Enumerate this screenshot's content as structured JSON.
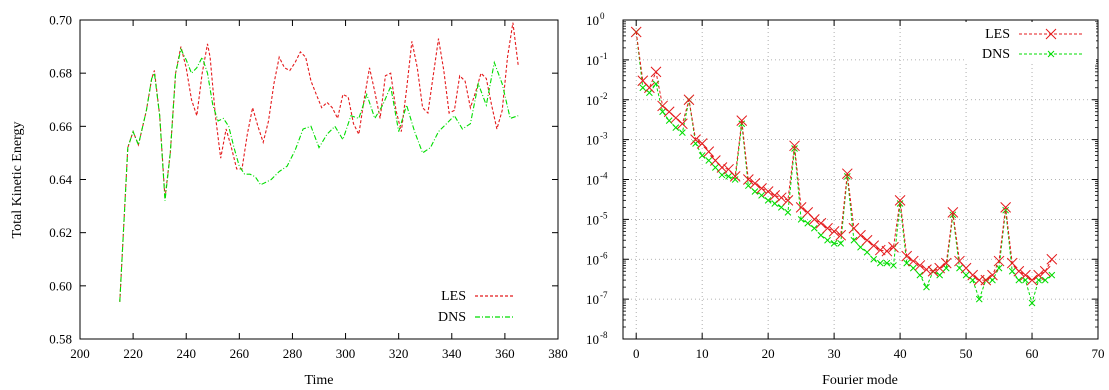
{
  "colors": {
    "les": "#e41a1c",
    "dns": "#00dd00",
    "grid": "#9a9a9a",
    "axis": "#000000"
  },
  "chart_data": [
    {
      "type": "line",
      "xlabel": "Time",
      "ylabel": "Total Kinetic Energy",
      "xlim": [
        200,
        380
      ],
      "ylim": [
        0.58,
        0.7
      ],
      "xticks": [
        200,
        220,
        240,
        260,
        280,
        300,
        320,
        340,
        360,
        380
      ],
      "xtick_labels": [
        "200",
        "220",
        "240",
        "260",
        "280",
        "300",
        "320",
        "340",
        "360",
        "380"
      ],
      "yticks": [
        0.58,
        0.6,
        0.62,
        0.64,
        0.66,
        0.68,
        0.7
      ],
      "ytick_labels": [
        "0.58",
        "0.60",
        "0.62",
        "0.64",
        "0.66",
        "0.68",
        "0.70"
      ],
      "grid": false,
      "legend_position": "bottom-right",
      "series": [
        {
          "name": "LES",
          "style": "dashed",
          "x": [
            215,
            218,
            220,
            222,
            225,
            227,
            228,
            230,
            232,
            234,
            236,
            238,
            240,
            242,
            244,
            246,
            248,
            249,
            251,
            253,
            255,
            257,
            259,
            261,
            263,
            265,
            267,
            269,
            271,
            273,
            275,
            277,
            279,
            281,
            283,
            285,
            287,
            289,
            291,
            293,
            295,
            297,
            299,
            301,
            303,
            305,
            307,
            309,
            311,
            313,
            315,
            317,
            319,
            321,
            323,
            325,
            327,
            329,
            331,
            333,
            335,
            337,
            339,
            341,
            343,
            345,
            347,
            349,
            351,
            353,
            355,
            357,
            359,
            361,
            363,
            365
          ],
          "y": [
            0.594,
            0.652,
            0.658,
            0.653,
            0.666,
            0.678,
            0.681,
            0.664,
            0.633,
            0.65,
            0.68,
            0.69,
            0.682,
            0.67,
            0.664,
            0.68,
            0.691,
            0.686,
            0.664,
            0.648,
            0.659,
            0.652,
            0.644,
            0.644,
            0.657,
            0.667,
            0.66,
            0.654,
            0.662,
            0.676,
            0.686,
            0.682,
            0.681,
            0.684,
            0.688,
            0.686,
            0.677,
            0.672,
            0.667,
            0.669,
            0.667,
            0.663,
            0.672,
            0.671,
            0.661,
            0.657,
            0.67,
            0.682,
            0.673,
            0.663,
            0.679,
            0.68,
            0.666,
            0.658,
            0.674,
            0.692,
            0.682,
            0.667,
            0.665,
            0.679,
            0.693,
            0.681,
            0.665,
            0.666,
            0.679,
            0.677,
            0.667,
            0.673,
            0.68,
            0.678,
            0.668,
            0.659,
            0.666,
            0.686,
            0.699,
            0.683
          ]
        },
        {
          "name": "DNS",
          "style": "dash-dot",
          "x": [
            215,
            218,
            220,
            222,
            225,
            227,
            228,
            230,
            232,
            234,
            236,
            238,
            240,
            242,
            244,
            246,
            248,
            250,
            252,
            254,
            256,
            258,
            260,
            262,
            264,
            266,
            268,
            270,
            272,
            275,
            278,
            281,
            284,
            287,
            290,
            293,
            296,
            299,
            302,
            305,
            308,
            311,
            314,
            317,
            320,
            323,
            326,
            329,
            332,
            335,
            338,
            341,
            344,
            347,
            350,
            353,
            356,
            359,
            362,
            365
          ],
          "y": [
            0.594,
            0.652,
            0.658,
            0.653,
            0.666,
            0.678,
            0.68,
            0.664,
            0.632,
            0.65,
            0.68,
            0.689,
            0.685,
            0.68,
            0.682,
            0.686,
            0.68,
            0.668,
            0.662,
            0.663,
            0.66,
            0.652,
            0.645,
            0.642,
            0.642,
            0.641,
            0.638,
            0.639,
            0.64,
            0.643,
            0.645,
            0.651,
            0.659,
            0.66,
            0.652,
            0.657,
            0.66,
            0.655,
            0.664,
            0.663,
            0.672,
            0.663,
            0.668,
            0.675,
            0.658,
            0.668,
            0.658,
            0.65,
            0.652,
            0.658,
            0.661,
            0.664,
            0.659,
            0.661,
            0.676,
            0.668,
            0.684,
            0.676,
            0.663,
            0.664
          ]
        }
      ]
    },
    {
      "type": "line",
      "xlabel": "Fourier mode",
      "ylabel": "",
      "yscale": "log",
      "xlim": [
        -2,
        70
      ],
      "ylim": [
        1e-08,
        1
      ],
      "xticks": [
        0,
        10,
        20,
        30,
        40,
        50,
        60,
        70
      ],
      "xtick_labels": [
        "0",
        "10",
        "20",
        "30",
        "40",
        "50",
        "60",
        "70"
      ],
      "yticks": [
        1e-08,
        1e-07,
        1e-06,
        1e-05,
        0.0001,
        0.001,
        0.01,
        0.1,
        1
      ],
      "ytick_labels": [
        {
          "base": "10",
          "exp": "-8"
        },
        {
          "base": "10",
          "exp": "-7"
        },
        {
          "base": "10",
          "exp": "-6"
        },
        {
          "base": "10",
          "exp": "-5"
        },
        {
          "base": "10",
          "exp": "-4"
        },
        {
          "base": "10",
          "exp": "-3"
        },
        {
          "base": "10",
          "exp": "-2"
        },
        {
          "base": "10",
          "exp": "-1"
        },
        {
          "base": "10",
          "exp": "0"
        }
      ],
      "grid": true,
      "legend_position": "top-right",
      "series": [
        {
          "name": "LES",
          "marker": "x",
          "style": "dashed",
          "x": [
            0,
            1,
            2,
            3,
            4,
            5,
            6,
            7,
            8,
            9,
            10,
            11,
            12,
            13,
            14,
            15,
            16,
            17,
            18,
            19,
            20,
            21,
            22,
            23,
            24,
            25,
            26,
            27,
            28,
            29,
            30,
            31,
            32,
            33,
            34,
            35,
            36,
            37,
            38,
            39,
            40,
            41,
            42,
            43,
            44,
            45,
            46,
            47,
            48,
            49,
            50,
            51,
            52,
            53,
            54,
            55,
            56,
            57,
            58,
            59,
            60,
            61,
            62,
            63
          ],
          "y": [
            0.5,
            0.03,
            0.02,
            0.05,
            0.007,
            0.005,
            0.0035,
            0.0025,
            0.01,
            0.001,
            0.0008,
            0.0005,
            0.0003,
            0.0002,
            0.00018,
            0.00012,
            0.003,
            0.0001,
            8e-05,
            6e-05,
            5e-05,
            4e-05,
            3.5e-05,
            3e-05,
            0.0007,
            2e-05,
            1.5e-05,
            1e-05,
            8e-06,
            6e-06,
            5e-06,
            4e-06,
            0.00014,
            6e-06,
            4e-06,
            3e-06,
            2.2e-06,
            1.7e-06,
            1.6e-06,
            2e-06,
            3e-05,
            1.2e-06,
            9e-07,
            7e-07,
            5.5e-07,
            5e-07,
            6e-07,
            8e-07,
            1.5e-05,
            9e-07,
            6e-07,
            4e-07,
            3e-07,
            3e-07,
            4e-07,
            9e-07,
            2e-05,
            8e-07,
            5e-07,
            4e-07,
            3e-07,
            4e-07,
            5e-07,
            1e-06
          ]
        },
        {
          "name": "DNS",
          "marker": "x",
          "style": "dashed",
          "x": [
            0,
            1,
            2,
            3,
            4,
            5,
            6,
            7,
            8,
            9,
            10,
            11,
            12,
            13,
            14,
            15,
            16,
            17,
            18,
            19,
            20,
            21,
            22,
            23,
            24,
            25,
            26,
            27,
            28,
            29,
            30,
            31,
            32,
            33,
            34,
            35,
            36,
            37,
            38,
            39,
            40,
            41,
            42,
            43,
            44,
            45,
            46,
            47,
            48,
            49,
            50,
            51,
            52,
            53,
            54,
            55,
            56,
            57,
            58,
            59,
            60,
            61,
            62,
            63
          ],
          "y": [
            0.5,
            0.02,
            0.015,
            0.025,
            0.005,
            0.003,
            0.002,
            0.0015,
            0.01,
            0.0008,
            0.0004,
            0.0003,
            0.0002,
            0.00013,
            0.00012,
            0.0001,
            0.0025,
            7e-05,
            5e-05,
            4e-05,
            3e-05,
            2.5e-05,
            2e-05,
            1.5e-05,
            0.0006,
            1e-05,
            8e-06,
            6e-06,
            4e-06,
            3e-06,
            2.5e-06,
            2.5e-06,
            0.00012,
            3e-06,
            2e-06,
            1.5e-06,
            1e-06,
            8e-07,
            8e-07,
            7e-07,
            2.5e-05,
            8e-07,
            6e-07,
            4e-07,
            2e-07,
            5e-07,
            4e-07,
            6e-07,
            1.3e-05,
            6e-07,
            4e-07,
            3e-07,
            1e-07,
            3e-07,
            3e-07,
            6e-07,
            1.7e-05,
            5e-07,
            3e-07,
            3e-07,
            8e-08,
            3e-07,
            3e-07,
            4e-07
          ]
        }
      ]
    }
  ]
}
